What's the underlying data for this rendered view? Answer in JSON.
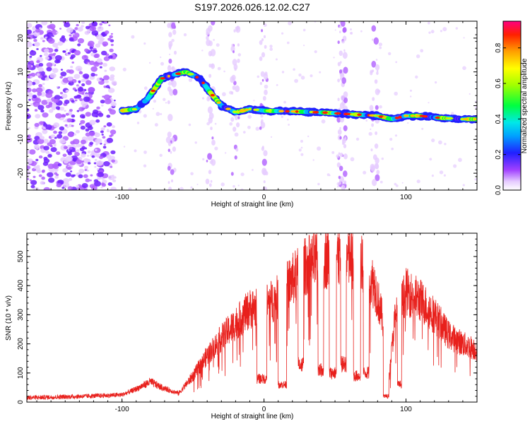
{
  "title": "S197.2026.026.12.02.C27",
  "chart_data": [
    {
      "type": "heatmap",
      "xlabel": "Height of straight line (km)",
      "ylabel": "Frequency (Hz)",
      "xlim": [
        -167,
        150
      ],
      "ylim": [
        -25,
        25
      ],
      "xticks": [
        -100,
        0,
        100
      ],
      "yticks": [
        -20,
        -10,
        0,
        10,
        20
      ],
      "colorbar": {
        "label": "Normalized spectral amplitude",
        "range": [
          0,
          0.95
        ],
        "ticks": [
          0.0,
          0.2,
          0.4,
          0.6,
          0.8
        ]
      },
      "ridge": [
        {
          "x": -100,
          "y": -1.5
        },
        {
          "x": -90,
          "y": -1
        },
        {
          "x": -82,
          "y": 2
        },
        {
          "x": -72,
          "y": 8
        },
        {
          "x": -65,
          "y": 9
        },
        {
          "x": -55,
          "y": 10
        },
        {
          "x": -45,
          "y": 8
        },
        {
          "x": -38,
          "y": 4
        },
        {
          "x": -30,
          "y": 0
        },
        {
          "x": -20,
          "y": -2
        },
        {
          "x": -10,
          "y": -1
        },
        {
          "x": 0,
          "y": -1.5
        },
        {
          "x": 20,
          "y": -1.7
        },
        {
          "x": 40,
          "y": -2
        },
        {
          "x": 60,
          "y": -2.5
        },
        {
          "x": 80,
          "y": -3
        },
        {
          "x": 90,
          "y": -4
        },
        {
          "x": 100,
          "y": -3
        },
        {
          "x": 110,
          "y": -3
        },
        {
          "x": 120,
          "y": -3.5
        },
        {
          "x": 140,
          "y": -4
        },
        {
          "x": 150,
          "y": -4
        }
      ]
    },
    {
      "type": "line",
      "xlabel": "Height of straight line (km)",
      "ylabel": "SNR (10 * v/v)",
      "xlim": [
        -167,
        150
      ],
      "ylim": [
        0,
        580
      ],
      "xticks": [
        -100,
        0,
        100
      ],
      "yticks": [
        0,
        100,
        200,
        300,
        400,
        500
      ],
      "series": [
        {
          "name": "SNR",
          "color": "#e8201c",
          "profile": [
            {
              "x": -167,
              "y": 15
            },
            {
              "x": -140,
              "y": 18
            },
            {
              "x": -115,
              "y": 22
            },
            {
              "x": -100,
              "y": 25
            },
            {
              "x": -90,
              "y": 45
            },
            {
              "x": -80,
              "y": 70
            },
            {
              "x": -72,
              "y": 50
            },
            {
              "x": -60,
              "y": 30
            },
            {
              "x": -50,
              "y": 90
            },
            {
              "x": -40,
              "y": 160
            },
            {
              "x": -30,
              "y": 220
            },
            {
              "x": -20,
              "y": 270
            },
            {
              "x": -10,
              "y": 320
            },
            {
              "x": 0,
              "y": 330
            },
            {
              "x": 10,
              "y": 360
            },
            {
              "x": 20,
              "y": 420
            },
            {
              "x": 30,
              "y": 470
            },
            {
              "x": 40,
              "y": 490
            },
            {
              "x": 50,
              "y": 500
            },
            {
              "x": 60,
              "y": 490
            },
            {
              "x": 70,
              "y": 470
            },
            {
              "x": 78,
              "y": 400
            },
            {
              "x": 85,
              "y": 250
            },
            {
              "x": 88,
              "y": 80
            },
            {
              "x": 92,
              "y": 280
            },
            {
              "x": 100,
              "y": 380
            },
            {
              "x": 110,
              "y": 350
            },
            {
              "x": 120,
              "y": 300
            },
            {
              "x": 130,
              "y": 230
            },
            {
              "x": 140,
              "y": 200
            },
            {
              "x": 150,
              "y": 180
            }
          ],
          "dropouts": [
            {
              "from": -5,
              "to": 2,
              "y": 80
            },
            {
              "from": 10,
              "to": 16,
              "y": 60
            },
            {
              "from": 24,
              "to": 28,
              "y": 130
            },
            {
              "from": 38,
              "to": 42,
              "y": 110
            },
            {
              "from": 46,
              "to": 51,
              "y": 100
            },
            {
              "from": 54,
              "to": 58,
              "y": 130
            },
            {
              "from": 63,
              "to": 68,
              "y": 90
            },
            {
              "from": 70,
              "to": 74,
              "y": 100
            },
            {
              "from": 84,
              "to": 88,
              "y": 20
            },
            {
              "from": 94,
              "to": 97,
              "y": 60
            }
          ]
        }
      ]
    }
  ]
}
